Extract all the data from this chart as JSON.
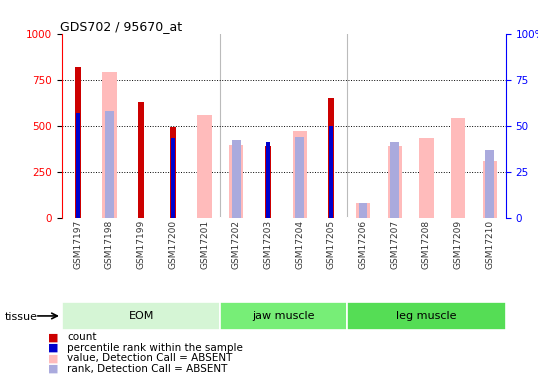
{
  "title": "GDS702 / 95670_at",
  "samples": [
    "GSM17197",
    "GSM17198",
    "GSM17199",
    "GSM17200",
    "GSM17201",
    "GSM17202",
    "GSM17203",
    "GSM17204",
    "GSM17205",
    "GSM17206",
    "GSM17207",
    "GSM17208",
    "GSM17209",
    "GSM17210"
  ],
  "groups": [
    {
      "name": "EOM",
      "start": 0,
      "end": 4,
      "color": "#d5f5d5"
    },
    {
      "name": "jaw muscle",
      "start": 5,
      "end": 8,
      "color": "#77dd77"
    },
    {
      "name": "leg muscle",
      "start": 9,
      "end": 13,
      "color": "#44cc44"
    }
  ],
  "dark_red_vals": [
    820,
    null,
    630,
    490,
    null,
    null,
    390,
    null,
    650,
    null,
    null,
    null,
    null,
    null
  ],
  "blue_vals_pct": [
    57,
    null,
    null,
    43,
    null,
    null,
    41,
    null,
    50,
    null,
    null,
    null,
    null,
    null
  ],
  "pink_vals": [
    null,
    790,
    null,
    null,
    560,
    395,
    null,
    470,
    null,
    80,
    390,
    430,
    540,
    310
  ],
  "light_blue_pct": [
    null,
    58,
    null,
    null,
    null,
    42,
    null,
    44,
    null,
    8,
    41,
    null,
    null,
    37
  ],
  "ylim_left": [
    0,
    1000
  ],
  "ylim_right": [
    0,
    100
  ],
  "yticks_left": [
    0,
    250,
    500,
    750,
    1000
  ],
  "yticks_right": [
    0,
    25,
    50,
    75,
    100
  ],
  "color_dark_red": "#cc0000",
  "color_blue": "#0000cc",
  "color_pink": "#ffbbbb",
  "color_light_blue": "#aaaadd",
  "tissue_label": "tissue",
  "legend_labels": [
    "count",
    "percentile rank within the sample",
    "value, Detection Call = ABSENT",
    "rank, Detection Call = ABSENT"
  ]
}
